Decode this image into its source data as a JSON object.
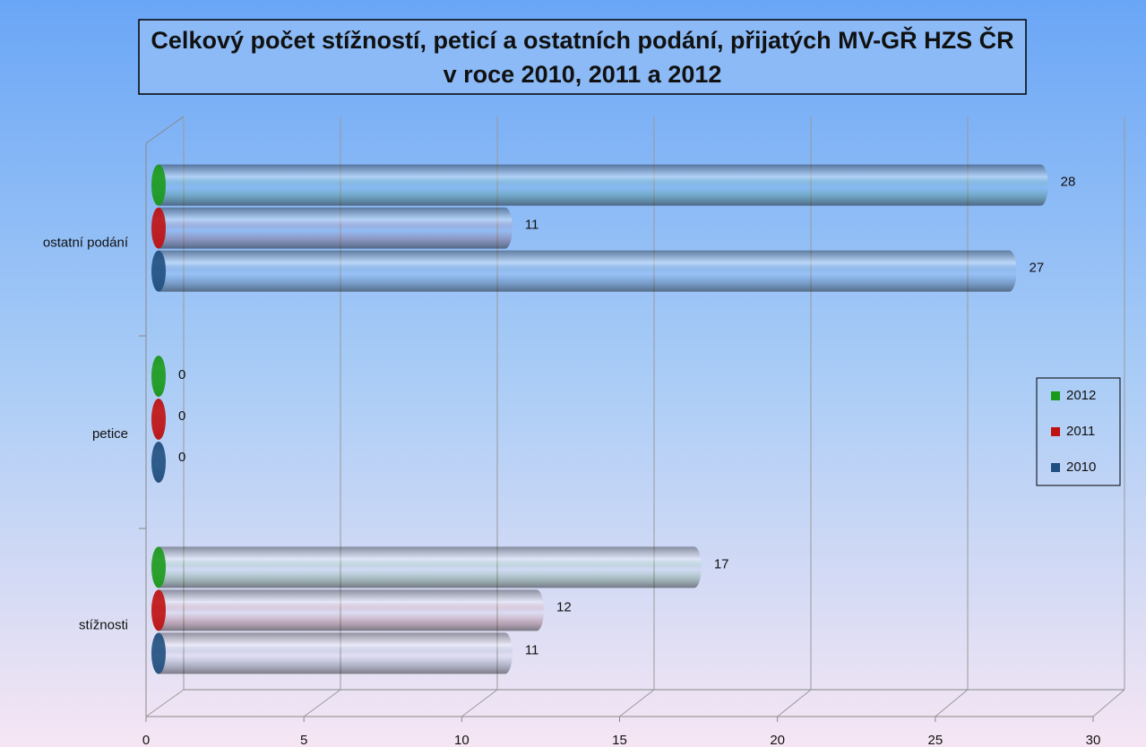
{
  "chart_data": {
    "type": "bar3d",
    "title": [
      "Celkový počet stížností, peticí a ostatních podání, přijatých MV-GŘ HZS ČR",
      "v roce 2010, 2011 a 2012"
    ],
    "categories": [
      "stížnosti",
      "petice",
      "ostatní podání"
    ],
    "series": [
      {
        "name": "2012",
        "color": "#1a9a1a",
        "values": [
          17,
          0,
          28
        ]
      },
      {
        "name": "2011",
        "color": "#c01010",
        "values": [
          12,
          0,
          11
        ]
      },
      {
        "name": "2010",
        "color": "#1f4f80",
        "values": [
          11,
          0,
          27
        ]
      }
    ],
    "xlim": [
      0,
      30
    ],
    "xticks": [
      0,
      5,
      10,
      15,
      20,
      25,
      30
    ],
    "grid": true,
    "legend": "right"
  }
}
